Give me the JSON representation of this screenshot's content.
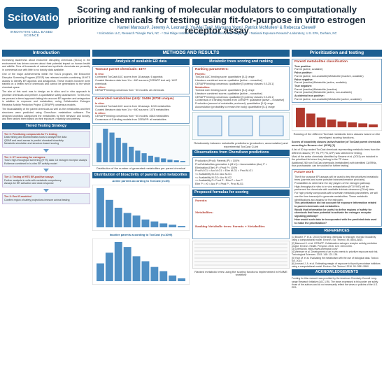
{
  "header": {
    "logo_main": "ScitoVation",
    "logo_sub": "INNOVATIVE CELL BASED SCIENCE",
    "title": "Scoring and ranking of molecular modulators to computationally prioritize chemicals for testing using fit-for-purpose in vitro estrogen receptor assay",
    "authors": "Kamel Mansouri¹, Jeremy A. Leonard², Yu-Mei Tan², Miyoung Yoon¹, Patrick McMullen¹ & Rebecca Clewell¹",
    "affiliations": "¹ ScitoVation LLC, Research Triangle Park, NC · ² Oak Ridge Institute for Science and Education, Oak Ridge, TN · ³ National Exposure Research Laboratory, U.S. EPA, Durham, NC"
  },
  "bands": {
    "intro": "Introduction",
    "methods": "METHODS AND RESULTS",
    "prior": "Prioritization and testing"
  },
  "intro_text": [
    "Increasing awareness about endocrine disrupting chemicals (EDCs) in the environment has driven concern about their potential impact on human health and wildlife. Tens of thousands of natural and synthetic chemicals are presently in commercial use with little to no toxicity data available.",
    "One of the major achievements within the Tox21 program, the Endocrine Disruptor Screening Program (EDSP) has released models combining 18 HTS assays to identify ER agonists and antagonists. These models however were trained on a limited set of chemicals and cannot be generalized to the whole chemical space.",
    "The aim of this work was to design an in silico and in vitro approach to prioritize chemicals and perform a quantitative safety assessment. To this end, we pursued a tiered approach taking into account ER agonism and antagonism in addition to exposure and metabolism, using Collaborative Estrogen Receptor Activity Prediction Project (CERAPP) consensus models.",
    "The bioavailability of the parent chemicals as well as the metabolites and their structures were predicted using ChemAxon metabolism software. The designed workflow categorized the metabolites by their behavior and toxicity, and then ranked them based on their exposure, reactivity and potency."
  ],
  "tiered": {
    "title": "Tiered Testing Strategy",
    "tiers": [
      {
        "name": "Tier 0: Prioritizing compounds for Tx testing",
        "items": [
          "Data mining and bioinformatics tools to analyze the data",
          "QSAR and read-across to predict chemical bioactivity",
          "Metabolic simulation and structure-based scoring"
        ]
      },
      {
        "name": "Tier 1: HT screening for estrogens",
        "items": [
          "Tox21 high-throughput screening (HTS) data: 18 estrogen receptor assays",
          "Evidence combined in in-vitro ER activity model"
        ]
      },
      {
        "name": "Tier 2: Testing of HTS ER-positive assays",
        "items": [
          "Further analysis in cells with metabolic competency",
          "Assays for ER activation and dose-response"
        ]
      },
      {
        "name": "Tier 3: Envi E-modeled",
        "items": [
          "Confirm region of safety projections immune animal testing"
        ]
      }
    ]
  },
  "analysis": {
    "title": "Analysis of available ER data",
    "toxcast_title": "ToxCast parent chemicals: 1677",
    "invivo_label": "In vivo:",
    "invivo_lines": [
      "Combined ToxCast AUC scores from 18 assays: 6 agonists",
      "Curated literature data from 1 to ~400 sources (CERAPP test set): 1497 chemicals"
    ],
    "insilico_label": "In silico:",
    "insilico_line": "CERAPP binding consensus from ~40 models: all chemicals",
    "generated_title": "Generated metabolites (I&II): 15486 (8708 unique)",
    "invitro_label": "In vitro:",
    "invitro_lines": [
      "Combined ToxCast AUC scores from 18 assays: 1243 metabolites",
      "Curated literature data from 1 to ~400 sources: 1478 metabolites"
    ],
    "insilico2_label": "In silico:",
    "insilico2_lines": [
      "CERAPP binding consensus from ~40 models: 4684 metabolites",
      "Consensus of 5 binding models from CERAPP: all metabolites"
    ],
    "chart_caption": "Distribution of the number of generated metabolites per parent chemical"
  },
  "scores": {
    "title": "Metabolic trees scoring and ranking",
    "ranking_title": "Ranking parameters:",
    "parents_label": "Parents:",
    "parents_items": [
      "ToxCast AUC binding score: quantitative [0-1] range",
      "Literature combined scores: qualitative [active – nonactive]",
      "CERAPP binding consensus: qualitative [5 potency classes 0.0-25.1]"
    ],
    "metab_label": "Metabolites:",
    "metab_items": [
      "ToxCast AUC binding score: quantitative [0-1] range",
      "Literature combined scores: qualitative [active – nonactive]",
      "CERAPP binding consensus: qualitative [5 potency classes 0.0-25.1]",
      "Consensus of 5 binding models from CERAPP: qualitative [active – nonactive]",
      "Production (amount of metabolite produced): quantitative [0-1] range",
      "Accumulation (probability to remain the body): quantitative [0-1] range"
    ],
    "chart_caption": "Relationship between metabolite predictions (production, accumulation) and experimental ToxCast CLint",
    "chemaxon_title": "Observations from ChemAxon predictions",
    "chemaxon_lines": [
      "Production (Prod): Parents (P) = 100%",
      "Prod Metabolites generation k (M k1) = Accumulation (Acc) P ×",
      "Elimination (Elim) P = Prod P= 100%",
      "Prod M-G1 = Acc M-G1 = Elim M-G1 = Prod M-G1",
      "<< Availability M-G1= Acc M-G1",
      "<< Availability M-G2= Acc M-G2",
      "<< Availability P= Prod P - Elim P = Acc P",
      "Elim P = v0 = Acc P = Prod P - Prod M-G1"
    ],
    "formulas_title": "Proposed formulas for scoring",
    "formula_parents": "Parents:",
    "formula_metab": "Metabolites:",
    "formula_both": "Ranking Metabolic trees: Parents + Metabolites"
  },
  "trees": {
    "distribution_title": "Distribution of bioactivity of parents and metabolites",
    "active_caption": "Active parents according to ToxCast (n=60)",
    "inactive_caption": "Inactive parents according to ToxCast (n=1099)",
    "ranked_caption": "Ranked metabolic trees using the scoring functions implemented in KNIME workflow"
  },
  "prior": {
    "parent_title": "Parent/ metabolites classification",
    "true_pos": "True positive:",
    "true_pos_items": [
      "Parent (active, available)"
    ],
    "false_pos": "False positive:",
    "false_pos_items": [
      "Parent (active, non-available)/Metabolite (inactive, available)"
    ],
    "false_neg": "False negative:",
    "false_neg_items": [
      "Parent (inactive)/Metabolite (active, available)"
    ],
    "true_neg": "True negative:",
    "true_neg_items": [
      "Parent (inactive)/Metabolite (inactive)",
      "Parent (inactive)/Metabolite (active, non-available)"
    ],
    "accidental": "Accidental true positive:",
    "accidental_items": [
      "Parent (active, non-available)/Metabolite (active, available)"
    ],
    "chart_caption": "Ranking of the different ToxCast metabolic trees classes based on the developed scoring functions.",
    "score_note": "Scores of bioactivity classes (active/inactive) of ToxCast parent chemicals according to Browne et al. (2015) [1]",
    "bullets": [
      "A list of 30 top ranked ToxCast chemicals representing metabolic trees from the different classes (TP, TN, FP, FN, ATP) was selected for testing.",
      "Most of the active chemicals identified by Browne et al. (2015) are included in the prioritized list since they belong to the TP class.",
      "Additional 260 non ToxCast chemicals (metabolites) with identified CASRNs, thus purchasable, can be studied for further testing."
    ],
    "future_title": "Future work",
    "future_items": [
      "The fit for purpose ER assays will be used to test the prioritized metabolic trees (parents and some possible biotransformation products). Probabilities to determine the key players of the estrogen pathway.",
      "High-throughput in vitro to in vivo extrapolation (HT-IVIVE) will be performed for chemicals with available intrinsic clearance (CLint) data.",
      "For high priority compounds with uncertain metabolic parameters, we will use the time transcript to generate metabolites. These metabolic identifications and assays for the estrogen.",
      "This prioritization did not account for exposure information related to parent chemicals and metabolites.",
      "Would that information be useful to define regions of safety for chemicals that have potential to activate the estrogen receptor signaling pathway?",
      "How would such data be incorporated with the predicted data used to make the prioritization?"
    ],
    "refs_title": "REFERENCES",
    "refs": [
      "[1] Browne, P. et al. (2015) Screening chemicals for estrogen receptor bioactivity using a computational model. Environ. Sci. Technol. 49, 8804–8814.",
      "[2] Mansouri K. et al. CERAPP: Collaborative estrogen receptor activity prediction project. Environ. Health. Perspect. 2016. 124: 1023-1033.",
      "[3] ChemAxon. https://www.chemaxon.com/",
      "[4] Wetmore et al. Development of an in vitro metric to prioritize exposure and risk. Toxicological Sciences. 2015. 148: 121-136.",
      "[5] Yoon M. et al. Evaluating the metabolism with the use of biological data. Toxicol. Sci. 2014.",
      "[6] Leonard J. A. et al. Estimating margin of exposure to thyroid peroxidase inhibitors using a computational model. Environ. Sci. Technol. 2016. 50: 2851-2860."
    ],
    "ack_title": "ACKNOWLEDGEMENTS",
    "ack": "Funding for this research was provided by the American Chemistry Council Long-range Research Initiative (ACC LRI). The views expressed in this poster are solely those of the authors and do not necessarily reflect the views or policies of the U.S. EPA."
  },
  "active_chart": {
    "categories": [
      "P",
      "M1",
      "M2",
      "M3",
      "M4",
      "M5",
      "M6",
      "M7",
      "M8",
      "M9"
    ],
    "values": [
      60,
      42,
      30,
      22,
      18,
      12,
      9,
      6,
      4,
      2
    ]
  },
  "inactive_chart": {
    "categories": [
      "P",
      "M1",
      "M2",
      "M3",
      "M4",
      "M5",
      "M6",
      "M7",
      "M8",
      "M9"
    ],
    "values": [
      25,
      40,
      55,
      48,
      35,
      28,
      20,
      14,
      8,
      4
    ]
  },
  "colors": {
    "primary": "#1d5f91",
    "accent": "#b03a2e",
    "bar": "#4f8fc4"
  }
}
